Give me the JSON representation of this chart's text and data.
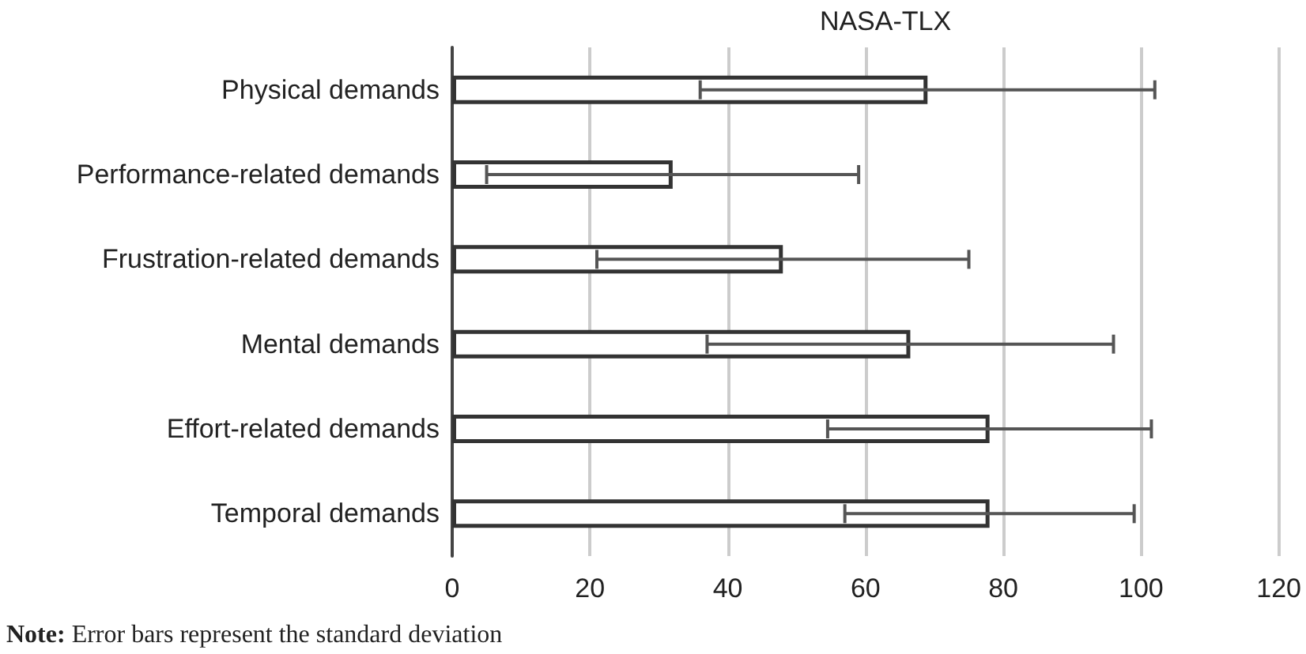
{
  "chart_data": {
    "type": "bar",
    "orientation": "horizontal",
    "title": "NASA-TLX",
    "categories": [
      "Physical demands",
      "Performance-related demands",
      "Frustration-related demands",
      "Mental demands",
      "Effort-related demands",
      "Temporal demands"
    ],
    "values": [
      69,
      32,
      48,
      66.5,
      78,
      78
    ],
    "errors": [
      33,
      27,
      27,
      29.5,
      23.5,
      21
    ],
    "color": "#ffffff",
    "xlim": [
      0,
      120
    ],
    "xticks": [
      0,
      20,
      40,
      60,
      80,
      100,
      120
    ],
    "grid": "x",
    "annotations": [
      "Note: Error bars represent the standard deviation"
    ]
  }
}
